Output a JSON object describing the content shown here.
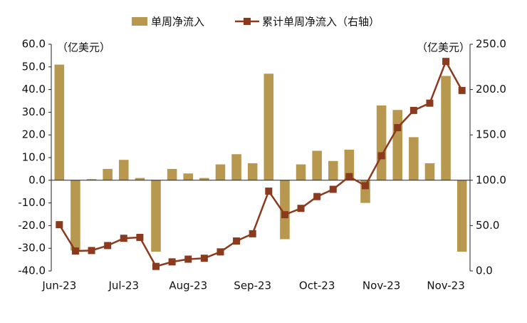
{
  "chart_data": {
    "type": "bar",
    "y_label": "（亿美元）",
    "y2_label": "（亿美元）",
    "categories": [
      "Jun-23",
      null,
      null,
      null,
      "Jul-23",
      null,
      null,
      null,
      "Aug-23",
      null,
      null,
      null,
      "Sep-23",
      null,
      null,
      null,
      "Oct-23",
      null,
      null,
      null,
      "Nov-23",
      null,
      null,
      null,
      "Nov-23",
      null
    ],
    "series": [
      {
        "name": "单周净流入",
        "color": "#b8984f",
        "type": "bar",
        "values": [
          51,
          -31,
          0.5,
          5,
          9,
          1,
          -31.5,
          5,
          3,
          1,
          7,
          11.5,
          7.5,
          47,
          -26,
          7,
          13,
          8.5,
          13.5,
          -10,
          33,
          31,
          19,
          7.5,
          46,
          -31.5
        ]
      },
      {
        "name": "累计单周净流入（右轴）",
        "color": "#8b3a1e",
        "type": "line",
        "axis": "y2",
        "values": [
          51,
          22,
          22.5,
          28,
          36,
          37,
          5,
          10,
          13,
          14,
          21,
          33,
          41,
          88,
          62,
          69,
          82,
          90,
          104,
          94,
          127,
          158,
          177,
          185,
          231,
          199
        ]
      }
    ],
    "ylim": [
      -40,
      60
    ],
    "yticks": [
      {
        "value": -40,
        "label": "-40.0"
      },
      {
        "value": -30,
        "label": "-30.0"
      },
      {
        "value": -20,
        "label": "-20.0"
      },
      {
        "value": -10,
        "label": "-10.0"
      },
      {
        "value": 0,
        "label": "0.0"
      },
      {
        "value": 10,
        "label": "10.0"
      },
      {
        "value": 20,
        "label": "20.0"
      },
      {
        "value": 30,
        "label": "30.0"
      },
      {
        "value": 40,
        "label": "40.0"
      },
      {
        "value": 50,
        "label": "50.0"
      },
      {
        "value": 60,
        "label": "60.0"
      }
    ],
    "y2lim": [
      0,
      250
    ],
    "y2ticks": [
      {
        "value": 0,
        "label": "0.0"
      },
      {
        "value": 50,
        "label": "50.0"
      },
      {
        "value": 100,
        "label": "100.0"
      },
      {
        "value": 150,
        "label": "150.0"
      },
      {
        "value": 200,
        "label": "200.0"
      },
      {
        "value": 250,
        "label": "250.0"
      }
    ],
    "grid": false
  }
}
